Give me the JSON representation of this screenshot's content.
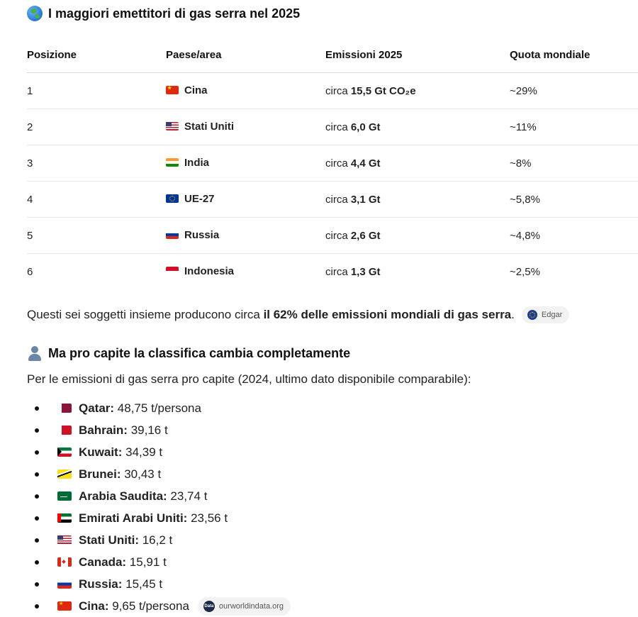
{
  "title": "I maggiori emettitori di gas serra nel 2025",
  "table": {
    "headers": [
      "Posizione",
      "Paese/area",
      "Emissioni 2025",
      "Quota mondiale"
    ],
    "rows": [
      {
        "pos": "1",
        "flag": "cn",
        "country": "Cina",
        "prefix": "circa ",
        "value": "15,5 Gt CO₂e",
        "share": "~29%"
      },
      {
        "pos": "2",
        "flag": "us",
        "country": "Stati Uniti",
        "prefix": "circa ",
        "value": "6,0 Gt",
        "share": "~11%"
      },
      {
        "pos": "3",
        "flag": "in",
        "country": "India",
        "prefix": "circa ",
        "value": "4,4 Gt",
        "share": "~8%"
      },
      {
        "pos": "4",
        "flag": "eu",
        "country": "UE-27",
        "prefix": "circa ",
        "value": "3,1 Gt",
        "share": "~5,8%"
      },
      {
        "pos": "5",
        "flag": "ru",
        "country": "Russia",
        "prefix": "circa ",
        "value": "2,6 Gt",
        "share": "~4,8%"
      },
      {
        "pos": "6",
        "flag": "id",
        "country": "Indonesia",
        "prefix": "circa ",
        "value": "1,3 Gt",
        "share": "~2,5%"
      }
    ]
  },
  "summary": {
    "text_before": "Questi sei soggetti insieme producono circa ",
    "bold": "il 62% delle emissioni mondiali di gas serra",
    "text_after": ".",
    "source_label": "Edgar"
  },
  "per_capita": {
    "title": "Ma pro capite la classifica cambia completamente",
    "intro": "Per le emissioni di gas serra pro capite (2024, ultimo dato disponibile comparabile):",
    "items": [
      {
        "flag": "qa",
        "name": "Qatar:",
        "value": " 48,75 t/persona"
      },
      {
        "flag": "bh",
        "name": "Bahrain:",
        "value": " 39,16 t"
      },
      {
        "flag": "kw",
        "name": "Kuwait:",
        "value": " 34,39 t"
      },
      {
        "flag": "bn",
        "name": "Brunei:",
        "value": " 30,43 t"
      },
      {
        "flag": "sa",
        "name": "Arabia Saudita:",
        "value": " 23,74 t"
      },
      {
        "flag": "ae",
        "name": "Emirati Arabi Uniti:",
        "value": " 23,56 t"
      },
      {
        "flag": "us",
        "name": "Stati Uniti:",
        "value": " 16,2 t"
      },
      {
        "flag": "ca",
        "name": "Canada:",
        "value": " 15,91 t"
      },
      {
        "flag": "ru",
        "name": "Russia:",
        "value": " 15,45 t"
      },
      {
        "flag": "cn",
        "name": "Cina:",
        "value": " 9,65 t/persona"
      }
    ],
    "source_label": "ourworldindata.org",
    "source_icon_text": "Data"
  }
}
